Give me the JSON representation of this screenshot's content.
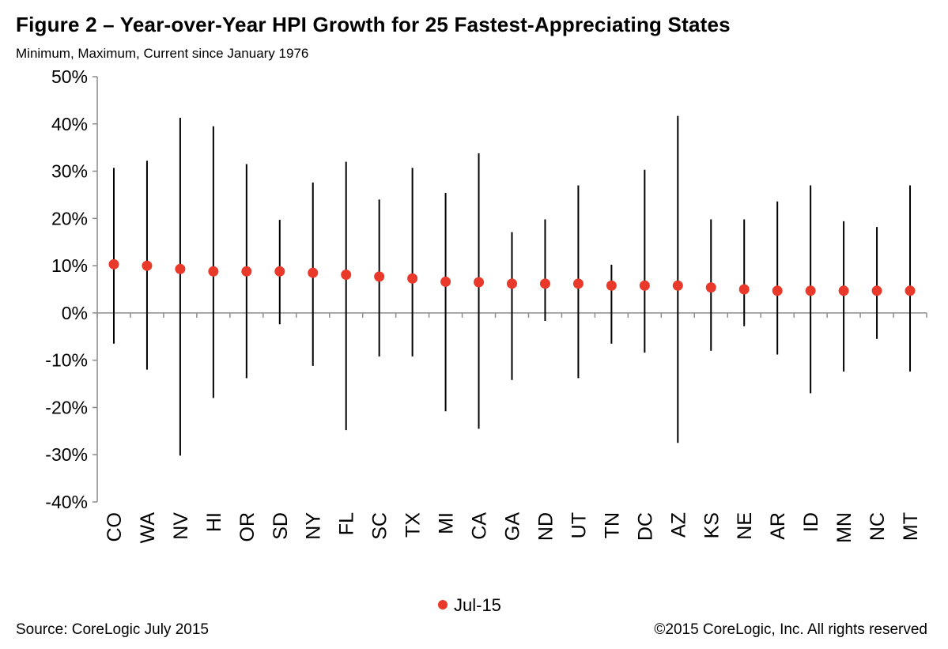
{
  "title": "Figure 2 – Year-over-Year  HPI Growth for 25 Fastest-Appreciating States",
  "subtitle": "Minimum, Maximum, Current since January 1976",
  "source": "Source: CoreLogic  July 2015",
  "copyright": "©2015 CoreLogic, Inc. All rights reserved",
  "colors": {
    "marker": "#e8392b",
    "line": "#000000",
    "axis": "#8c8c8c"
  },
  "chart_data": {
    "type": "range-dot",
    "title": "Figure 2 – Year-over-Year  HPI Growth for 25 Fastest-Appreciating States",
    "subtitle": "Minimum, Maximum, Current since January 1976",
    "xlabel": "",
    "ylabel": "",
    "ylim": [
      -40,
      50
    ],
    "yticks": [
      50,
      40,
      30,
      20,
      10,
      0,
      -10,
      -20,
      -30,
      -40
    ],
    "ytick_labels": [
      "50%",
      "40%",
      "30%",
      "20%",
      "10%",
      "0%",
      "-10%",
      "-20%",
      "-30%",
      "-40%"
    ],
    "grid": false,
    "legend": {
      "position": "bottom",
      "entries": [
        "Jul-15"
      ]
    },
    "categories": [
      "CO",
      "WA",
      "NV",
      "HI",
      "OR",
      "SD",
      "NY",
      "FL",
      "SC",
      "TX",
      "MI",
      "CA",
      "GA",
      "ND",
      "UT",
      "TN",
      "DC",
      "AZ",
      "KS",
      "NE",
      "AR",
      "ID",
      "MN",
      "NC",
      "MT"
    ],
    "series": [
      {
        "name": "Jul-15",
        "role": "current",
        "values": [
          10.3,
          10.0,
          9.3,
          8.8,
          8.8,
          8.8,
          8.5,
          8.1,
          7.7,
          7.3,
          6.6,
          6.5,
          6.2,
          6.2,
          6.2,
          5.8,
          5.8,
          5.8,
          5.4,
          5.0,
          4.7,
          4.7,
          4.7,
          4.7,
          4.7
        ]
      },
      {
        "role": "maximum",
        "values": [
          30.7,
          32.2,
          41.3,
          39.5,
          31.5,
          19.7,
          27.6,
          32.0,
          24.0,
          30.7,
          25.4,
          33.8,
          17.1,
          19.8,
          27.0,
          10.2,
          30.3,
          41.7,
          19.8,
          19.8,
          23.6,
          27.0,
          19.4,
          18.2,
          27.0
        ]
      },
      {
        "role": "minimum",
        "values": [
          -6.5,
          -12.0,
          -30.2,
          -18.0,
          -13.8,
          -2.4,
          -11.2,
          -24.8,
          -9.2,
          -9.2,
          -20.8,
          -24.5,
          -14.2,
          -1.7,
          -13.8,
          -6.5,
          -8.4,
          -27.5,
          -8.0,
          -2.8,
          -8.8,
          -17.0,
          -12.4,
          -5.5,
          -12.4
        ]
      }
    ]
  }
}
